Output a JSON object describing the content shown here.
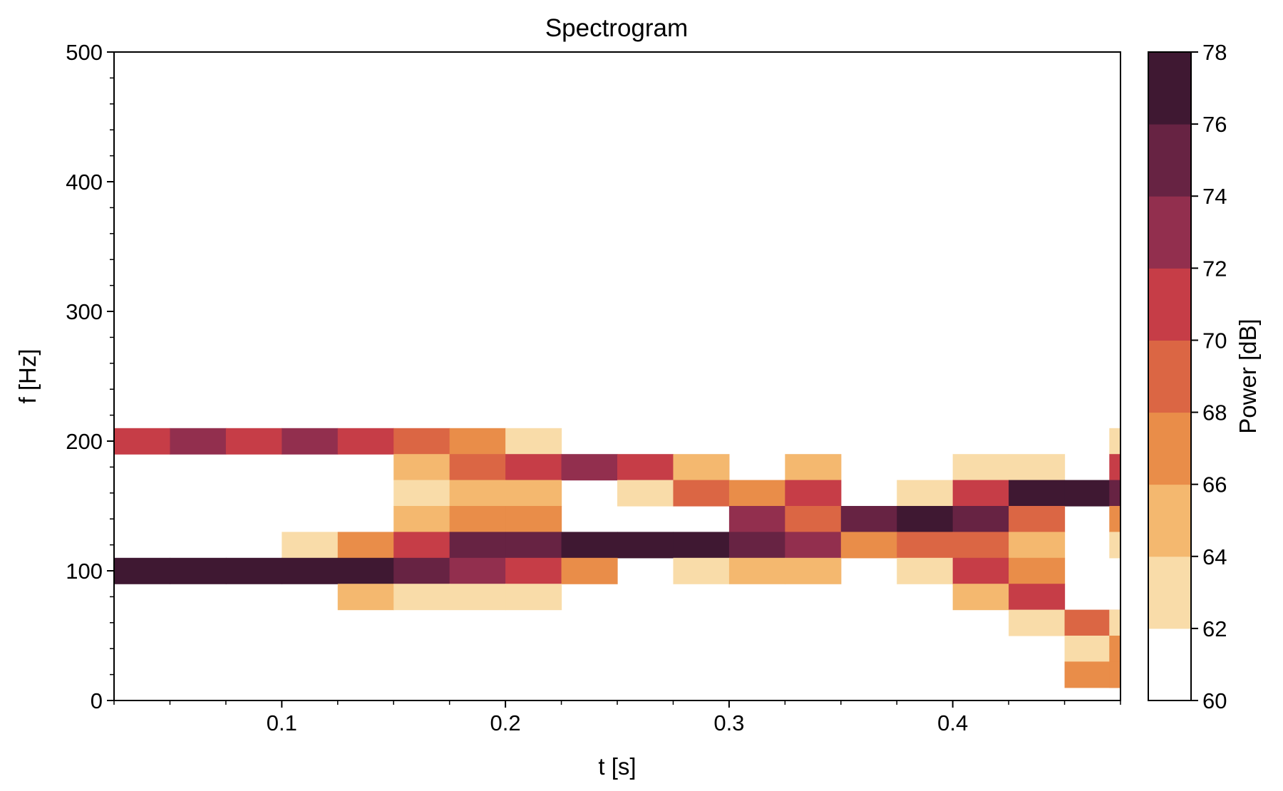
{
  "chart_data": {
    "type": "heatmap",
    "title": "Spectrogram",
    "xlabel": "t [s]",
    "ylabel": "f [Hz]",
    "xlim": [
      0.025,
      0.475
    ],
    "ylim": [
      0,
      500
    ],
    "x_ticks": [
      0.1,
      0.2,
      0.3,
      0.4
    ],
    "x_tick_labels": [
      "0.1",
      "0.2",
      "0.3",
      "0.4"
    ],
    "y_ticks": [
      0,
      100,
      200,
      300,
      400,
      500
    ],
    "y_tick_labels": [
      "0",
      "100",
      "200",
      "300",
      "400",
      "500"
    ],
    "time_bins": [
      0.0375,
      0.0625,
      0.0875,
      0.1125,
      0.1375,
      0.1625,
      0.1875,
      0.2125,
      0.2375,
      0.2625,
      0.2875,
      0.3125,
      0.3375,
      0.3625,
      0.3875,
      0.4125,
      0.4375,
      0.4625
    ],
    "time_bin_width": 0.025,
    "freq_bin_height": 20,
    "cells": [
      {
        "t": 0.0375,
        "f": 200,
        "db": 71
      },
      {
        "t": 0.0625,
        "f": 200,
        "db": 73
      },
      {
        "t": 0.0875,
        "f": 200,
        "db": 71
      },
      {
        "t": 0.1125,
        "f": 200,
        "db": 73
      },
      {
        "t": 0.1375,
        "f": 200,
        "db": 71
      },
      {
        "t": 0.1625,
        "f": 200,
        "db": 69
      },
      {
        "t": 0.1875,
        "f": 200,
        "db": 67
      },
      {
        "t": 0.2125,
        "f": 200,
        "db": 63
      },
      {
        "t": 0.1625,
        "f": 180,
        "db": 65
      },
      {
        "t": 0.1875,
        "f": 180,
        "db": 69
      },
      {
        "t": 0.2125,
        "f": 180,
        "db": 71
      },
      {
        "t": 0.2375,
        "f": 180,
        "db": 73
      },
      {
        "t": 0.2625,
        "f": 180,
        "db": 71
      },
      {
        "t": 0.2875,
        "f": 180,
        "db": 65
      },
      {
        "t": 0.3375,
        "f": 180,
        "db": 65
      },
      {
        "t": 0.4125,
        "f": 180,
        "db": 63
      },
      {
        "t": 0.4375,
        "f": 180,
        "db": 63
      },
      {
        "t": 0.1625,
        "f": 160,
        "db": 63
      },
      {
        "t": 0.1875,
        "f": 160,
        "db": 65
      },
      {
        "t": 0.2125,
        "f": 160,
        "db": 65
      },
      {
        "t": 0.2625,
        "f": 160,
        "db": 63
      },
      {
        "t": 0.2875,
        "f": 160,
        "db": 69
      },
      {
        "t": 0.3125,
        "f": 160,
        "db": 67
      },
      {
        "t": 0.3375,
        "f": 160,
        "db": 71
      },
      {
        "t": 0.3875,
        "f": 160,
        "db": 63
      },
      {
        "t": 0.4125,
        "f": 160,
        "db": 71
      },
      {
        "t": 0.4375,
        "f": 160,
        "db": 77
      },
      {
        "t": 0.4625,
        "f": 160,
        "db": 77
      },
      {
        "t": 0.1625,
        "f": 140,
        "db": 65
      },
      {
        "t": 0.1875,
        "f": 140,
        "db": 67
      },
      {
        "t": 0.2125,
        "f": 140,
        "db": 67
      },
      {
        "t": 0.3125,
        "f": 140,
        "db": 73
      },
      {
        "t": 0.3375,
        "f": 140,
        "db": 69
      },
      {
        "t": 0.3625,
        "f": 140,
        "db": 75
      },
      {
        "t": 0.3875,
        "f": 140,
        "db": 77
      },
      {
        "t": 0.4125,
        "f": 140,
        "db": 75
      },
      {
        "t": 0.4375,
        "f": 140,
        "db": 69
      },
      {
        "t": 0.1125,
        "f": 120,
        "db": 63
      },
      {
        "t": 0.1375,
        "f": 120,
        "db": 67
      },
      {
        "t": 0.1625,
        "f": 120,
        "db": 71
      },
      {
        "t": 0.1875,
        "f": 120,
        "db": 75
      },
      {
        "t": 0.2125,
        "f": 120,
        "db": 75
      },
      {
        "t": 0.2375,
        "f": 120,
        "db": 77
      },
      {
        "t": 0.2625,
        "f": 120,
        "db": 77
      },
      {
        "t": 0.2875,
        "f": 120,
        "db": 77
      },
      {
        "t": 0.3125,
        "f": 120,
        "db": 75
      },
      {
        "t": 0.3375,
        "f": 120,
        "db": 73
      },
      {
        "t": 0.3625,
        "f": 120,
        "db": 67
      },
      {
        "t": 0.3875,
        "f": 120,
        "db": 69
      },
      {
        "t": 0.4125,
        "f": 120,
        "db": 69
      },
      {
        "t": 0.4375,
        "f": 120,
        "db": 65
      },
      {
        "t": 0.0375,
        "f": 100,
        "db": 77
      },
      {
        "t": 0.0625,
        "f": 100,
        "db": 77
      },
      {
        "t": 0.0875,
        "f": 100,
        "db": 77
      },
      {
        "t": 0.1125,
        "f": 100,
        "db": 77
      },
      {
        "t": 0.1375,
        "f": 100,
        "db": 77
      },
      {
        "t": 0.1625,
        "f": 100,
        "db": 75
      },
      {
        "t": 0.1875,
        "f": 100,
        "db": 73
      },
      {
        "t": 0.2125,
        "f": 100,
        "db": 71
      },
      {
        "t": 0.2375,
        "f": 100,
        "db": 67
      },
      {
        "t": 0.2875,
        "f": 100,
        "db": 63
      },
      {
        "t": 0.3125,
        "f": 100,
        "db": 65
      },
      {
        "t": 0.3375,
        "f": 100,
        "db": 65
      },
      {
        "t": 0.3875,
        "f": 100,
        "db": 63
      },
      {
        "t": 0.4125,
        "f": 100,
        "db": 71
      },
      {
        "t": 0.4375,
        "f": 100,
        "db": 67
      },
      {
        "t": 0.1375,
        "f": 80,
        "db": 65
      },
      {
        "t": 0.1625,
        "f": 80,
        "db": 63
      },
      {
        "t": 0.1875,
        "f": 80,
        "db": 63
      },
      {
        "t": 0.2125,
        "f": 80,
        "db": 63
      },
      {
        "t": 0.4125,
        "f": 80,
        "db": 65
      },
      {
        "t": 0.4375,
        "f": 80,
        "db": 71
      },
      {
        "t": 0.4375,
        "f": 60,
        "db": 63
      },
      {
        "t": 0.4625,
        "f": 60,
        "db": 69
      },
      {
        "t": 0.4625,
        "f": 40,
        "db": 63
      },
      {
        "t": 0.4625,
        "f": 20,
        "db": 67
      }
    ],
    "edge_column": {
      "t": 0.4725,
      "width": 0.005,
      "cells": [
        {
          "f": 200,
          "db": 63
        },
        {
          "f": 180,
          "db": 71
        },
        {
          "f": 160,
          "db": 75
        },
        {
          "f": 140,
          "db": 67
        },
        {
          "f": 120,
          "db": 63
        },
        {
          "f": 60,
          "db": 63
        },
        {
          "f": 40,
          "db": 67
        },
        {
          "f": 20,
          "db": 67
        }
      ]
    },
    "colorbar": {
      "label": "Power [dB]",
      "range": [
        60,
        78
      ],
      "ticks": [
        60,
        62,
        64,
        66,
        68,
        70,
        72,
        74,
        76,
        78
      ],
      "tick_labels": [
        "60",
        "62",
        "64",
        "66",
        "68",
        "70",
        "72",
        "74",
        "76",
        "78"
      ],
      "levels": [
        {
          "from": 60,
          "to": 62,
          "color": "#ffffff"
        },
        {
          "from": 62,
          "to": 64,
          "color": "#f9dca9"
        },
        {
          "from": 64,
          "to": 66,
          "color": "#f4b86f"
        },
        {
          "from": 66,
          "to": 68,
          "color": "#e98d49"
        },
        {
          "from": 68,
          "to": 70,
          "color": "#db6644"
        },
        {
          "from": 70,
          "to": 72,
          "color": "#c63d47"
        },
        {
          "from": 72,
          "to": 74,
          "color": "#922f4e"
        },
        {
          "from": 74,
          "to": 76,
          "color": "#672343"
        },
        {
          "from": 76,
          "to": 78,
          "color": "#3f1832"
        }
      ]
    },
    "grid": false,
    "legend": "colorbar-right"
  }
}
